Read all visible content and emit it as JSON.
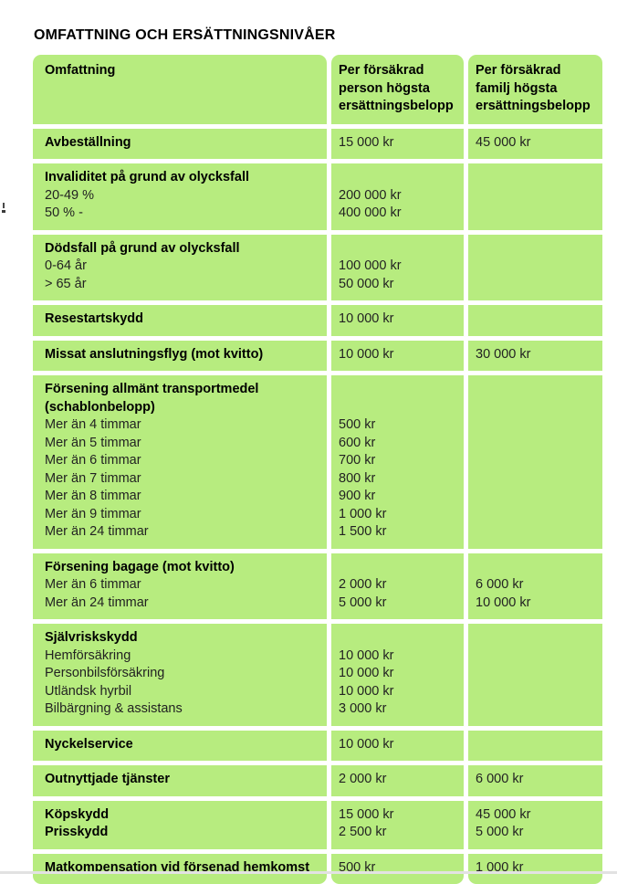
{
  "page": {
    "title": "OMFATTNING OCH ERSÄTTNINGSNIVÅER"
  },
  "colors": {
    "cell_green": "#b7ec7f",
    "gap_white": "#ffffff",
    "label_black": "#000000",
    "value_dark": "#222222",
    "divider_gray": "#e2e2e2"
  },
  "table": {
    "header": {
      "col1": [
        "Omfattning"
      ],
      "col2": [
        "Per försäkrad",
        "person högsta",
        "ersättningsbelopp"
      ],
      "col3": [
        "Per försäkrad",
        "familj högsta",
        "ersättningsbelopp"
      ]
    },
    "rows": [
      {
        "name": "avbestallning",
        "label": [
          {
            "text": "Avbeställning",
            "bold": true
          }
        ],
        "person": [
          "15 000 kr"
        ],
        "family": [
          "45 000 kr"
        ]
      },
      {
        "name": "invaliditet-olycksfall",
        "label": [
          {
            "text": "Invaliditet på grund av olycksfall",
            "bold": true
          },
          {
            "text": "20-49 %"
          },
          {
            "text": "50 % -"
          }
        ],
        "person": [
          "",
          "200 000 kr",
          "400 000 kr"
        ],
        "family": []
      },
      {
        "name": "dodsfall-olycksfall",
        "label": [
          {
            "text": "Dödsfall på grund av olycksfall",
            "bold": true
          },
          {
            "text": "0-64 år"
          },
          {
            "text": "> 65 år"
          }
        ],
        "person": [
          "",
          "100 000 kr",
          "50 000 kr"
        ],
        "family": []
      },
      {
        "name": "resestartskydd",
        "label": [
          {
            "text": "Resestartskydd",
            "bold": true
          }
        ],
        "person": [
          "10 000 kr"
        ],
        "family": []
      },
      {
        "name": "missat-anslutningsflyg",
        "label": [
          {
            "text": "Missat anslutningsflyg (mot kvitto)",
            "bold": true
          }
        ],
        "person": [
          "10 000 kr"
        ],
        "family": [
          "30 000 kr"
        ]
      },
      {
        "name": "forsening-transportmedel",
        "label": [
          {
            "text": "Försening allmänt transportmedel",
            "bold": true
          },
          {
            "text": "(schablonbelopp)",
            "bold": true
          },
          {
            "text": "Mer än 4 timmar"
          },
          {
            "text": "Mer än 5 timmar"
          },
          {
            "text": "Mer än 6 timmar"
          },
          {
            "text": "Mer än 7 timmar"
          },
          {
            "text": "Mer än 8 timmar"
          },
          {
            "text": "Mer än 9 timmar"
          },
          {
            "text": "Mer än 24 timmar"
          }
        ],
        "person": [
          "",
          "",
          "500 kr",
          "600 kr",
          "700 kr",
          "800 kr",
          "900 kr",
          "1 000 kr",
          "1 500 kr"
        ],
        "family": []
      },
      {
        "name": "forsening-bagage",
        "label": [
          {
            "text": "Försening bagage (mot kvitto)",
            "bold": true
          },
          {
            "text": "Mer än 6 timmar"
          },
          {
            "text": "Mer än 24 timmar"
          }
        ],
        "person": [
          "",
          "2 000 kr",
          "5 000 kr"
        ],
        "family": [
          "",
          "6 000 kr",
          "10 000 kr"
        ]
      },
      {
        "name": "sjalvriskskydd",
        "label": [
          {
            "text": "Självriskskydd",
            "bold": true
          },
          {
            "text": "Hemförsäkring"
          },
          {
            "text": "Personbilsförsäkring"
          },
          {
            "text": "Utländsk hyrbil"
          },
          {
            "text": "Bilbärgning & assistans"
          }
        ],
        "person": [
          "",
          "10 000 kr",
          "10 000 kr",
          "10 000 kr",
          "3 000 kr"
        ],
        "family": []
      },
      {
        "name": "nyckelservice",
        "label": [
          {
            "text": "Nyckelservice",
            "bold": true
          }
        ],
        "person": [
          "10 000 kr"
        ],
        "family": []
      },
      {
        "name": "outnyttjade-tjanster",
        "label": [
          {
            "text": "Outnyttjade tjänster",
            "bold": true
          }
        ],
        "person": [
          "2 000 kr"
        ],
        "family": [
          "6 000 kr"
        ]
      },
      {
        "name": "kopskydd-prisskydd",
        "label": [
          {
            "text": "Köpskydd",
            "bold": true
          },
          {
            "text": "Prisskydd",
            "bold": true
          }
        ],
        "person": [
          "15 000 kr",
          "2 500 kr"
        ],
        "family": [
          "45 000 kr",
          "5 000 kr"
        ]
      },
      {
        "name": "matkompensation",
        "label": [
          {
            "text": "Matkompensation vid försenad hemkomst",
            "bold": true
          }
        ],
        "person": [
          "500 kr"
        ],
        "family": [
          "1 000 kr"
        ]
      }
    ]
  }
}
